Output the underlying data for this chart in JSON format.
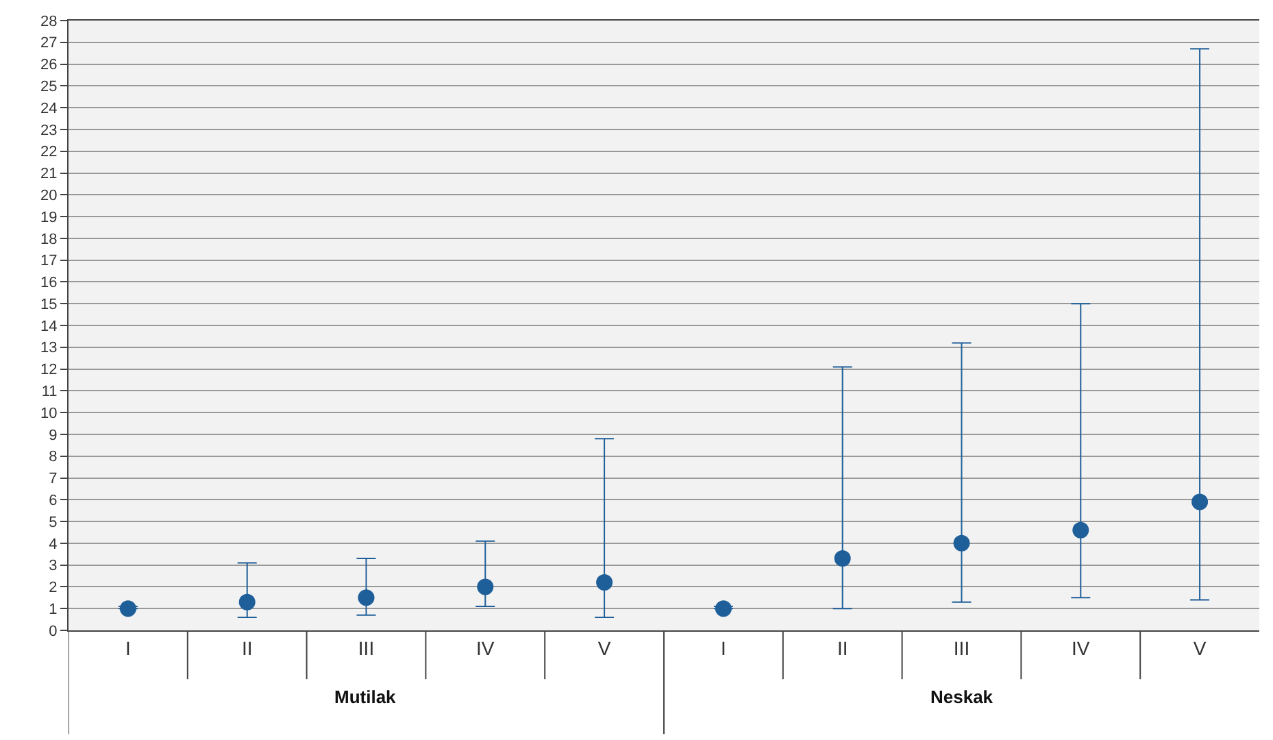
{
  "chart_data": {
    "type": "scatter",
    "categories": [
      "I",
      "II",
      "III",
      "IV",
      "V",
      "I",
      "II",
      "III",
      "IV",
      "V"
    ],
    "series": [
      {
        "color": "#1f5f99",
        "values": [
          1.0,
          1.3,
          1.5,
          2.0,
          2.2,
          1.0,
          3.3,
          4.0,
          4.6,
          5.9
        ],
        "errors": [
          [
            1.0,
            1.1
          ],
          [
            0.6,
            3.1
          ],
          [
            0.7,
            3.3
          ],
          [
            1.1,
            4.1
          ],
          [
            0.6,
            8.8
          ],
          [
            1.0,
            1.1
          ],
          [
            1.0,
            12.1
          ],
          [
            1.3,
            13.2
          ],
          [
            1.5,
            15.0
          ],
          [
            1.4,
            26.7
          ]
        ]
      }
    ],
    "annotations": [
      "Mutilak",
      "Neskak"
    ],
    "ylim": [
      0,
      28
    ],
    "yticks": [
      0,
      1,
      2,
      3,
      4,
      5,
      6,
      7,
      8,
      9,
      10,
      11,
      12,
      13,
      14,
      15,
      16,
      17,
      18,
      19,
      20,
      21,
      22,
      23,
      24,
      25,
      26,
      27,
      28
    ],
    "grid": "y",
    "marker": "circle"
  }
}
